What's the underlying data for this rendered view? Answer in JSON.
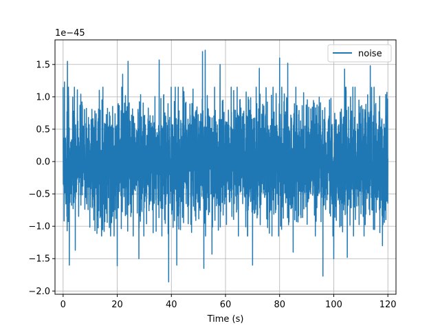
{
  "chart_data": {
    "type": "line",
    "title": "",
    "xlabel": "Time (s)",
    "ylabel": "",
    "offset_label": "1e−45",
    "xlim": [
      -3,
      123
    ],
    "ylim": [
      -2.05,
      1.88
    ],
    "x_ticks": [
      0,
      20,
      40,
      60,
      80,
      100,
      120
    ],
    "x_tick_labels": [
      "0",
      "20",
      "40",
      "60",
      "80",
      "100",
      "120"
    ],
    "y_ticks": [
      -2.0,
      -1.5,
      -1.0,
      -0.5,
      0.0,
      0.5,
      1.0,
      1.5
    ],
    "y_tick_labels": [
      "−2.0",
      "−1.5",
      "−1.0",
      "−0.5",
      "0.0",
      "0.5",
      "1.0",
      "1.5"
    ],
    "grid": true,
    "legend_position": "top-right",
    "series_color": "#1f77b4",
    "series": [
      {
        "name": "noise",
        "x_range": [
          0,
          120
        ],
        "typical_amplitude": 0.45,
        "peaks": [
          {
            "x": 0.5,
            "y": 1.23
          },
          {
            "x": 1.5,
            "y": -1.07
          },
          {
            "x": 1.6,
            "y": 1.55
          },
          {
            "x": 2.3,
            "y": -1.6
          },
          {
            "x": 4.5,
            "y": -1.37
          },
          {
            "x": 20.0,
            "y": -1.61
          },
          {
            "x": 22.0,
            "y": 1.35
          },
          {
            "x": 24.0,
            "y": 1.55
          },
          {
            "x": 28.0,
            "y": -1.5
          },
          {
            "x": 35.5,
            "y": 1.57
          },
          {
            "x": 39.0,
            "y": -1.86
          },
          {
            "x": 42.0,
            "y": -1.6
          },
          {
            "x": 51.5,
            "y": 1.7
          },
          {
            "x": 52.5,
            "y": 1.72
          },
          {
            "x": 52.0,
            "y": -1.65
          },
          {
            "x": 55.0,
            "y": -1.43
          },
          {
            "x": 58.0,
            "y": 1.5
          },
          {
            "x": 70.0,
            "y": -1.6
          },
          {
            "x": 72.5,
            "y": 1.44
          },
          {
            "x": 80.0,
            "y": 1.6
          },
          {
            "x": 83.0,
            "y": 1.52
          },
          {
            "x": 85.0,
            "y": -1.4
          },
          {
            "x": 96.0,
            "y": -1.77
          },
          {
            "x": 100.0,
            "y": -1.5
          },
          {
            "x": 104.0,
            "y": 1.43
          },
          {
            "x": 105.0,
            "y": -1.48
          },
          {
            "x": 113.5,
            "y": 1.48
          },
          {
            "x": 118.0,
            "y": -1.3
          },
          {
            "x": 119.5,
            "y": 0.7
          }
        ]
      }
    ]
  }
}
